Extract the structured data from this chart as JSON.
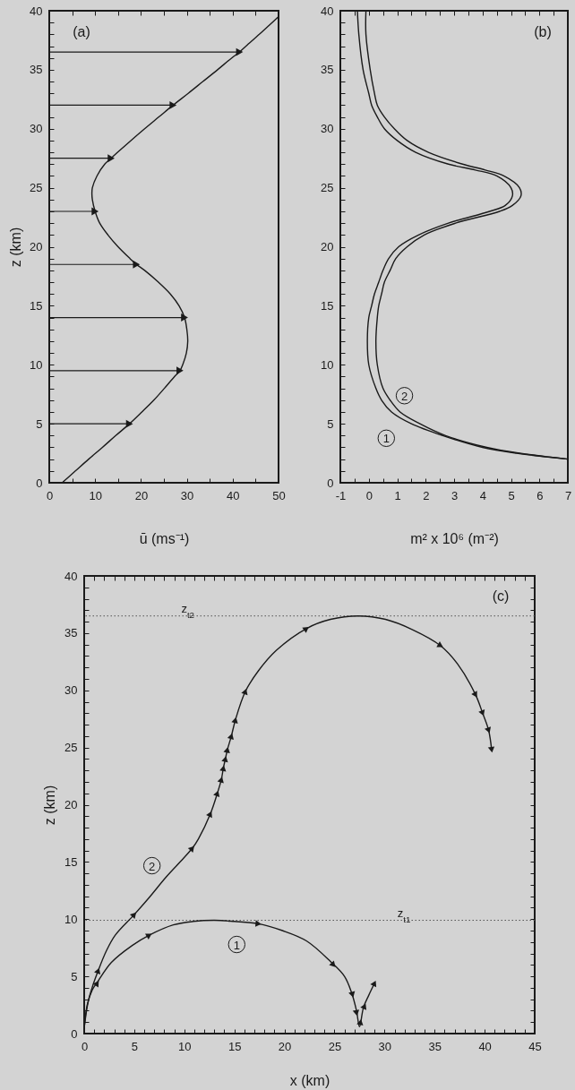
{
  "chart_data": [
    {
      "type": "line",
      "orientation": "horizontal",
      "xlabel": "ū (ms⁻¹)",
      "ylabel": "z (km)",
      "annotations": [
        "(a)"
      ],
      "xlim": [
        0,
        50
      ],
      "xticks": [
        0,
        {
          "value": 5,
          "label": null
        },
        10,
        {
          "value": 15,
          "label": null
        },
        20,
        {
          "value": 25,
          "label": null
        },
        30,
        {
          "value": 35,
          "label": null
        },
        40,
        {
          "value": 45,
          "label": null
        },
        50
      ],
      "ylim": [
        0,
        40
      ],
      "yticks": [
        0,
        {
          "value": 1,
          "label": null
        },
        {
          "value": 2,
          "label": null
        },
        {
          "value": 3,
          "label": null
        },
        {
          "value": 4,
          "label": null
        },
        5,
        {
          "value": 6,
          "label": null
        },
        {
          "value": 7,
          "label": null
        },
        {
          "value": 8,
          "label": null
        },
        {
          "value": 9,
          "label": null
        },
        10,
        {
          "value": 11,
          "label": null
        },
        {
          "value": 12,
          "label": null
        },
        {
          "value": 13,
          "label": null
        },
        {
          "value": 14,
          "label": null
        },
        15,
        {
          "value": 16,
          "label": null
        },
        {
          "value": 17,
          "label": null
        },
        {
          "value": 18,
          "label": null
        },
        {
          "value": 19,
          "label": null
        },
        20,
        {
          "value": 21,
          "label": null
        },
        {
          "value": 22,
          "label": null
        },
        {
          "value": 23,
          "label": null
        },
        {
          "value": 24,
          "label": null
        },
        25,
        {
          "value": 26,
          "label": null
        },
        {
          "value": 27,
          "label": null
        },
        {
          "value": 28,
          "label": null
        },
        {
          "value": 29,
          "label": null
        },
        30,
        {
          "value": 31,
          "label": null
        },
        {
          "value": 32,
          "label": null
        },
        {
          "value": 33,
          "label": null
        },
        {
          "value": 34,
          "label": null
        },
        35,
        {
          "value": 36,
          "label": null
        },
        {
          "value": 37,
          "label": null
        },
        {
          "value": 38,
          "label": null
        },
        {
          "value": 39,
          "label": null
        },
        40
      ],
      "series": [
        {
          "color": "#1a1a1a",
          "x": [
            0,
            1,
            2,
            3,
            4,
            5,
            6,
            7,
            8,
            9,
            9.5,
            10,
            11,
            12,
            13,
            14,
            15,
            16,
            17,
            18,
            18.5,
            19,
            20,
            21,
            22,
            23,
            24,
            24.5,
            25,
            26,
            27,
            27.5,
            28,
            29,
            30,
            31,
            32,
            33,
            34,
            35,
            36,
            36.5,
            37,
            38,
            39,
            39.5
          ],
          "values": [
            2.8,
            5.7,
            8.6,
            11.6,
            14.5,
            17.5,
            20.2,
            22.8,
            25.1,
            27.3,
            28.5,
            29.1,
            29.9,
            30.2,
            30.0,
            29.5,
            28.3,
            26.4,
            23.8,
            20.8,
            19.0,
            17.6,
            15.0,
            12.8,
            11.0,
            10.0,
            9.4,
            9.3,
            9.4,
            10.4,
            12.1,
            13.5,
            14.9,
            17.8,
            20.8,
            23.9,
            27.0,
            30.3,
            33.5,
            36.7,
            39.8,
            41.5,
            42.9,
            45.8,
            48.6,
            50.0
          ]
        },
        {
          "type": "lollipop",
          "color": "#1a1a1a",
          "marker": "triangle",
          "x": [
            5,
            9.5,
            14,
            18.5,
            23,
            27.5,
            32,
            36.5
          ],
          "values": [
            17.5,
            28.5,
            29.5,
            19,
            10,
            13.5,
            27,
            41.5
          ]
        }
      ]
    },
    {
      "type": "line",
      "orientation": "horizontal",
      "xlabel": "m² x 10⁶ (m⁻²)",
      "annotations": [
        "(b)"
      ],
      "xlim": [
        -1,
        7
      ],
      "xticks": [
        -1,
        {
          "value": -0.5,
          "label": null
        },
        0,
        {
          "value": 0.5,
          "label": null
        },
        1,
        {
          "value": 1.5,
          "label": null
        },
        2,
        {
          "value": 2.5,
          "label": null
        },
        3,
        {
          "value": 3.5,
          "label": null
        },
        4,
        {
          "value": 4.5,
          "label": null
        },
        5,
        {
          "value": 5.5,
          "label": null
        },
        6,
        {
          "value": 6.5,
          "label": null
        },
        7
      ],
      "ylim": [
        0,
        40
      ],
      "yticks": [
        0,
        {
          "value": 1,
          "label": null
        },
        {
          "value": 2,
          "label": null
        },
        {
          "value": 3,
          "label": null
        },
        {
          "value": 4,
          "label": null
        },
        5,
        {
          "value": 6,
          "label": null
        },
        {
          "value": 7,
          "label": null
        },
        {
          "value": 8,
          "label": null
        },
        {
          "value": 9,
          "label": null
        },
        10,
        {
          "value": 11,
          "label": null
        },
        {
          "value": 12,
          "label": null
        },
        {
          "value": 13,
          "label": null
        },
        {
          "value": 14,
          "label": null
        },
        15,
        {
          "value": 16,
          "label": null
        },
        {
          "value": 17,
          "label": null
        },
        {
          "value": 18,
          "label": null
        },
        {
          "value": 19,
          "label": null
        },
        20,
        {
          "value": 21,
          "label": null
        },
        {
          "value": 22,
          "label": null
        },
        {
          "value": 23,
          "label": null
        },
        {
          "value": 24,
          "label": null
        },
        25,
        {
          "value": 26,
          "label": null
        },
        {
          "value": 27,
          "label": null
        },
        {
          "value": 28,
          "label": null
        },
        {
          "value": 29,
          "label": null
        },
        30,
        {
          "value": 31,
          "label": null
        },
        {
          "value": 32,
          "label": null
        },
        {
          "value": 33,
          "label": null
        },
        {
          "value": 34,
          "label": null
        },
        35,
        {
          "value": 36,
          "label": null
        },
        {
          "value": 37,
          "label": null
        },
        {
          "value": 38,
          "label": null
        },
        {
          "value": 39,
          "label": null
        },
        40
      ],
      "x": [
        2,
        2.5,
        3,
        4,
        5,
        6,
        7,
        8,
        10,
        12,
        14,
        15,
        16,
        17,
        18,
        19,
        20,
        21,
        22,
        23,
        23.5,
        24.3,
        25,
        26,
        26.5,
        27,
        28,
        29,
        30,
        31,
        32,
        33,
        35,
        38,
        40
      ],
      "series": [
        {
          "name": "1",
          "color": "#1a1a1a",
          "values": [
            7.0,
            5.2,
            4.0,
            2.6,
            1.5,
            0.8,
            0.45,
            0.25,
            0.0,
            -0.05,
            0.0,
            0.1,
            0.2,
            0.35,
            0.5,
            0.7,
            1.05,
            1.75,
            2.8,
            4.25,
            4.8,
            5.05,
            5.0,
            4.5,
            3.75,
            2.8,
            1.65,
            1.0,
            0.55,
            0.3,
            0.1,
            0.0,
            -0.2,
            -0.35,
            -0.4
          ]
        },
        {
          "name": "2",
          "color": "#1a1a1a",
          "values": [
            7.0,
            5.3,
            4.15,
            2.7,
            1.8,
            1.1,
            0.75,
            0.5,
            0.3,
            0.25,
            0.3,
            0.35,
            0.45,
            0.55,
            0.75,
            0.95,
            1.35,
            1.95,
            3.05,
            4.6,
            5.05,
            5.35,
            5.3,
            4.75,
            4.1,
            3.3,
            2.1,
            1.35,
            0.9,
            0.55,
            0.3,
            0.2,
            0.05,
            -0.1,
            -0.1
          ]
        }
      ]
    },
    {
      "type": "line",
      "xlabel": "x (km)",
      "ylabel": "z (km)",
      "annotations": [
        "(c)"
      ],
      "xlim": [
        0,
        45
      ],
      "xticks": [
        0,
        {
          "value": 1,
          "label": null
        },
        {
          "value": 2,
          "label": null
        },
        {
          "value": 3,
          "label": null
        },
        {
          "value": 4,
          "label": null
        },
        5,
        {
          "value": 6,
          "label": null
        },
        {
          "value": 7,
          "label": null
        },
        {
          "value": 8,
          "label": null
        },
        {
          "value": 9,
          "label": null
        },
        10,
        {
          "value": 11,
          "label": null
        },
        {
          "value": 12,
          "label": null
        },
        {
          "value": 13,
          "label": null
        },
        {
          "value": 14,
          "label": null
        },
        15,
        {
          "value": 16,
          "label": null
        },
        {
          "value": 17,
          "label": null
        },
        {
          "value": 18,
          "label": null
        },
        {
          "value": 19,
          "label": null
        },
        20,
        {
          "value": 21,
          "label": null
        },
        {
          "value": 22,
          "label": null
        },
        {
          "value": 23,
          "label": null
        },
        {
          "value": 24,
          "label": null
        },
        25,
        {
          "value": 26,
          "label": null
        },
        {
          "value": 27,
          "label": null
        },
        {
          "value": 28,
          "label": null
        },
        {
          "value": 29,
          "label": null
        },
        30,
        {
          "value": 31,
          "label": null
        },
        {
          "value": 32,
          "label": null
        },
        {
          "value": 33,
          "label": null
        },
        {
          "value": 34,
          "label": null
        },
        35,
        {
          "value": 36,
          "label": null
        },
        {
          "value": 37,
          "label": null
        },
        {
          "value": 38,
          "label": null
        },
        {
          "value": 39,
          "label": null
        },
        40,
        {
          "value": 41,
          "label": null
        },
        {
          "value": 42,
          "label": null
        },
        {
          "value": 43,
          "label": null
        },
        {
          "value": 44,
          "label": null
        },
        45
      ],
      "ylim": [
        0,
        40
      ],
      "yticks": [
        0,
        {
          "value": 1,
          "label": null
        },
        {
          "value": 2,
          "label": null
        },
        {
          "value": 3,
          "label": null
        },
        {
          "value": 4,
          "label": null
        },
        5,
        {
          "value": 6,
          "label": null
        },
        {
          "value": 7,
          "label": null
        },
        {
          "value": 8,
          "label": null
        },
        {
          "value": 9,
          "label": null
        },
        10,
        {
          "value": 11,
          "label": null
        },
        {
          "value": 12,
          "label": null
        },
        {
          "value": 13,
          "label": null
        },
        {
          "value": 14,
          "label": null
        },
        15,
        {
          "value": 16,
          "label": null
        },
        {
          "value": 17,
          "label": null
        },
        {
          "value": 18,
          "label": null
        },
        {
          "value": 19,
          "label": null
        },
        20,
        {
          "value": 21,
          "label": null
        },
        {
          "value": 22,
          "label": null
        },
        {
          "value": 23,
          "label": null
        },
        {
          "value": 24,
          "label": null
        },
        25,
        {
          "value": 26,
          "label": null
        },
        {
          "value": 27,
          "label": null
        },
        {
          "value": 28,
          "label": null
        },
        {
          "value": 29,
          "label": null
        },
        30,
        {
          "value": 31,
          "label": null
        },
        {
          "value": 32,
          "label": null
        },
        {
          "value": 33,
          "label": null
        },
        {
          "value": 34,
          "label": null
        },
        35,
        {
          "value": 36,
          "label": null
        },
        {
          "value": 37,
          "label": null
        },
        {
          "value": 38,
          "label": null
        },
        {
          "value": 39,
          "label": null
        },
        40
      ],
      "ref_lines": [
        {
          "axis": "y",
          "value": 36.5,
          "label": "z$_{t2}$",
          "line_style": "dotted",
          "color": "#555555"
        },
        {
          "axis": "y",
          "value": 9.9,
          "label": "z$_{t1}$",
          "line_style": "dotted",
          "color": "#555555"
        }
      ],
      "series": [
        {
          "name": "1",
          "color": "#1a1a1a",
          "x": [
            0,
            0.3,
            0.8,
            1.4,
            2.7,
            4.8,
            6.5,
            8.9,
            10.9,
            13.0,
            15.0,
            17.4,
            19.8,
            22.2,
            24.6,
            26.0,
            26.7,
            27.2,
            27.5,
            27.9,
            28.4,
            29.0
          ],
          "values": [
            0.5,
            2.5,
            3.8,
            4.6,
            6.2,
            7.7,
            8.6,
            9.5,
            9.8,
            9.9,
            9.8,
            9.6,
            9.0,
            8.1,
            6.3,
            5.0,
            3.6,
            2.0,
            0.6,
            2.3,
            3.3,
            4.4
          ]
        },
        {
          "name": "2",
          "color": "#1a1a1a",
          "x": [
            0,
            0.4,
            0.9,
            1.4,
            2.2,
            3.1,
            5.0,
            6.5,
            8.2,
            9.9,
            10.8,
            11.4,
            12.6,
            13.3,
            13.7,
            13.9,
            14.1,
            14.3,
            14.7,
            15.1,
            16.1,
            17.4,
            19.2,
            22.2,
            24.6,
            27.4,
            30.1,
            32.8,
            35.6,
            37.3,
            39.1,
            39.8,
            40.4,
            40.7
          ],
          "values": [
            0.5,
            2.8,
            4.3,
            5.5,
            7.2,
            8.6,
            10.4,
            11.9,
            13.7,
            15.3,
            16.2,
            17.0,
            19.2,
            21.0,
            22.2,
            23.2,
            24.0,
            24.8,
            26.0,
            27.4,
            29.9,
            31.7,
            33.5,
            35.4,
            36.2,
            36.5,
            36.2,
            35.3,
            33.9,
            32.3,
            29.6,
            28.0,
            26.5,
            24.8
          ]
        },
        {
          "type": "scatter",
          "marker": "triangle",
          "color": "#1a1a1a",
          "x": [
            1.3,
            6.5,
            17.4,
            24.9,
            26.8,
            27.2,
            27.6,
            28.0,
            29.0
          ],
          "values": [
            4.4,
            8.6,
            9.6,
            6.0,
            3.4,
            1.8,
            1.0,
            2.4,
            4.4
          ]
        },
        {
          "type": "scatter",
          "marker": "triangle",
          "color": "#1a1a1a",
          "x": [
            1.4,
            5.0,
            10.8,
            12.6,
            13.3,
            13.7,
            13.9,
            14.1,
            14.3,
            14.7,
            15.1,
            16.1,
            22.2,
            35.6,
            39.1,
            39.8,
            40.4,
            40.7
          ],
          "values": [
            5.5,
            10.4,
            16.2,
            19.2,
            21.0,
            22.2,
            23.2,
            24.0,
            24.8,
            26.0,
            27.4,
            29.9,
            35.4,
            33.9,
            29.6,
            28.0,
            26.5,
            24.8
          ]
        }
      ]
    }
  ]
}
